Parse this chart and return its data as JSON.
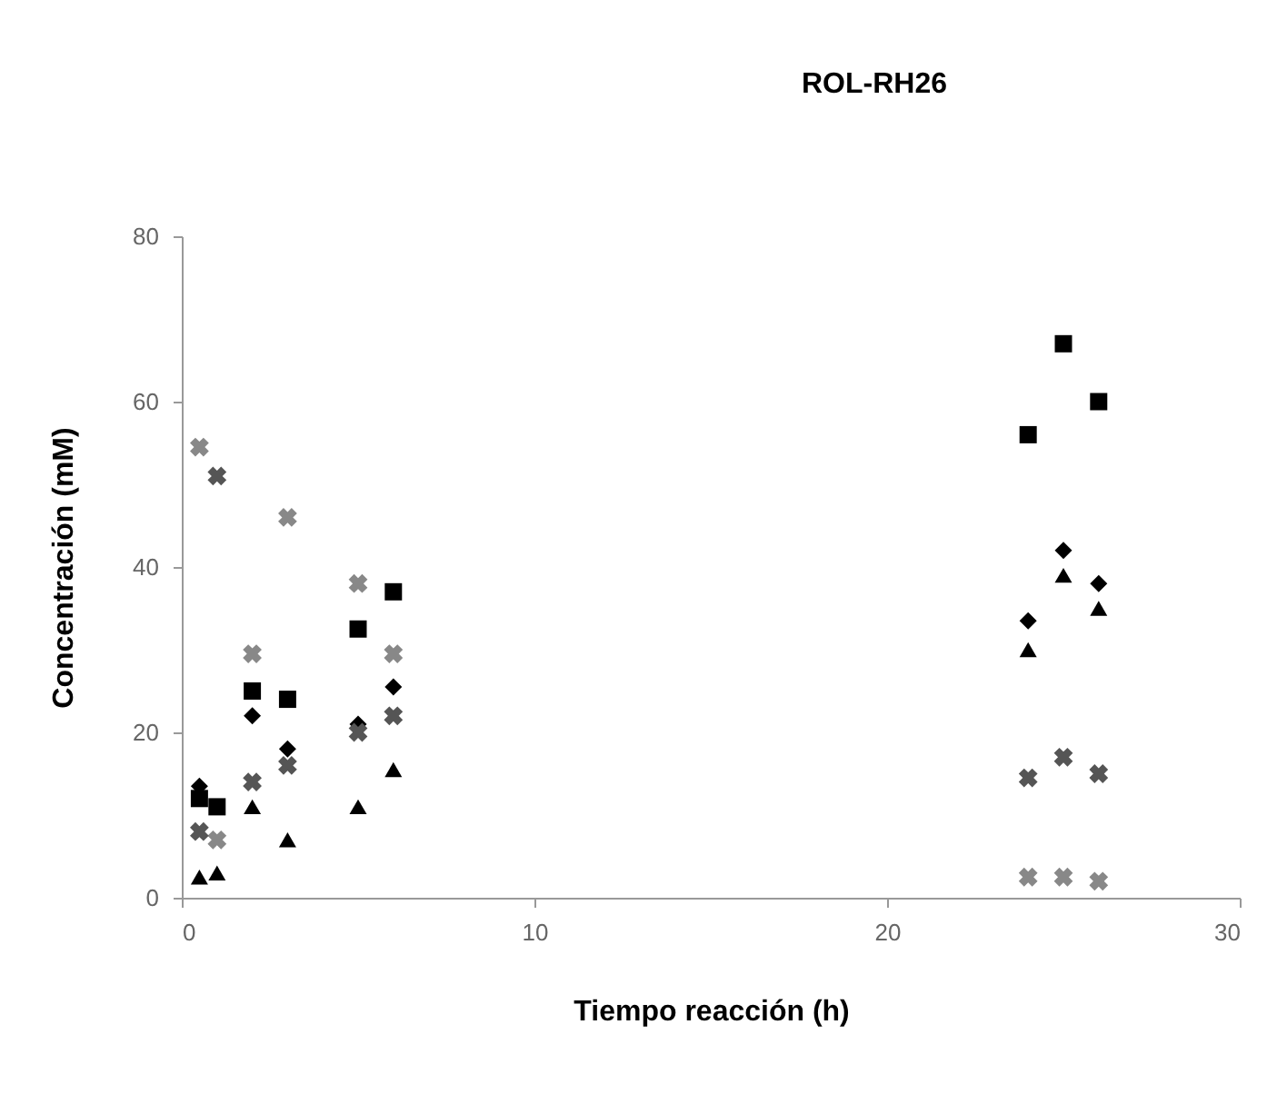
{
  "chart_data": {
    "type": "scatter",
    "title": "ROL-RH26",
    "xlabel": "Tiempo reacción (h)",
    "ylabel": "Concentración (mM)",
    "xlim": [
      0,
      30
    ],
    "xticks": [
      0,
      10,
      20,
      30
    ],
    "ylim": [
      0,
      80
    ],
    "yticks": [
      0,
      20,
      40,
      60,
      80
    ],
    "grid": false,
    "x": [
      0.5,
      1,
      2,
      3,
      5,
      6,
      24,
      25,
      26
    ],
    "series": [
      {
        "marker": "square",
        "color": "#000000",
        "values": [
          12,
          11,
          25,
          24,
          32.5,
          37,
          56,
          67,
          60
        ]
      },
      {
        "marker": "diamond",
        "color": "#000000",
        "values": [
          13.5,
          null,
          22,
          18,
          21,
          25.5,
          33.5,
          42,
          38
        ]
      },
      {
        "marker": "triangle",
        "color": "#000000",
        "values": [
          2.5,
          3,
          11,
          7,
          11,
          15.5,
          30,
          39,
          35
        ]
      },
      {
        "marker": "cross",
        "color": "#888888",
        "values": [
          54.5,
          7,
          29.5,
          46,
          38,
          29.5,
          2.5,
          2.5,
          2
        ]
      },
      {
        "marker": "cross",
        "color": "#555555",
        "values": [
          8,
          51,
          14,
          16,
          20,
          22,
          14.5,
          17,
          15
        ]
      }
    ]
  }
}
